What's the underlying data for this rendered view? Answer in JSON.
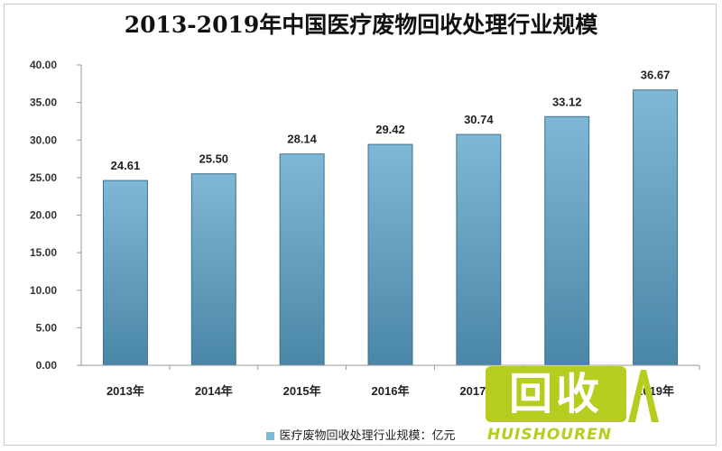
{
  "chart_data": {
    "type": "bar",
    "title": "2013-2019年中国医疗废物回收处理行业规模",
    "categories": [
      "2013年",
      "2014年",
      "2015年",
      "2016年",
      "2017年",
      "2018年",
      "2019年"
    ],
    "series": [
      {
        "name": "医疗废物回收处理行业规模：亿元",
        "values": [
          24.61,
          25.5,
          28.14,
          29.42,
          30.74,
          33.12,
          36.67
        ],
        "data_labels": [
          "24.61",
          "25.50",
          "28.14",
          "29.42",
          "30.74",
          "33.12",
          "36.67"
        ]
      }
    ],
    "ylim": [
      0,
      40
    ],
    "yticks": [
      "0.00",
      "5.00",
      "10.00",
      "15.00",
      "20.00",
      "25.00",
      "30.00",
      "35.00",
      "40.00"
    ],
    "ytick_values": [
      0,
      5,
      10,
      15,
      20,
      25,
      30,
      35,
      40
    ],
    "grid": false,
    "legend": "bottom",
    "colors": {
      "bar_top": "#7fb8d6",
      "bar_bottom": "#4a86a6",
      "bar_stroke": "#3f6f88",
      "axis": "#9a9a9a"
    }
  },
  "watermark": {
    "main_text": "回收",
    "sub_text": "HUISHOUREN",
    "color": "#b6cc1e"
  }
}
